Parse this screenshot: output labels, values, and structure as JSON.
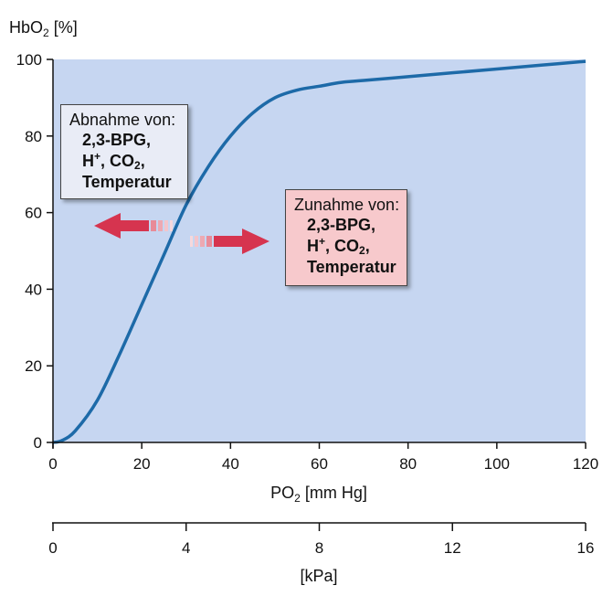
{
  "chart_data": {
    "type": "line",
    "y_axis_label_prefix": "HbO",
    "y_axis_label_sub": "2",
    "y_axis_label_suffix": " [%]",
    "x_axis_label_prefix": "PO",
    "x_axis_label_sub": "2",
    "x_axis_label_suffix": " [mm Hg]",
    "x_secondary_label": "[kPa]",
    "xlim": [
      0,
      120
    ],
    "ylim": [
      0,
      100
    ],
    "x_ticks": [
      "0",
      "20",
      "40",
      "60",
      "80",
      "100",
      "120"
    ],
    "y_ticks": [
      "0",
      "20",
      "40",
      "60",
      "80",
      "100"
    ],
    "x_secondary_ticks": [
      "0",
      "4",
      "8",
      "12",
      "16"
    ],
    "x_secondary_range": [
      0,
      16
    ],
    "grid": false,
    "series": [
      {
        "color": "#1d6aa8",
        "x": [
          0,
          2,
          5,
          10,
          15,
          20,
          25,
          30,
          35,
          40,
          45,
          50,
          55,
          60,
          65,
          70,
          80,
          90,
          100,
          110,
          120
        ],
        "y": [
          0,
          0.5,
          3,
          11,
          23,
          36,
          49,
          62,
          72,
          80,
          86,
          90,
          92,
          93,
          94,
          94.5,
          95.5,
          96.5,
          97.5,
          98.5,
          99.5
        ]
      }
    ],
    "annotations": {
      "left_box": {
        "heading": "Abnahme von:",
        "line1": "2,3-BPG,",
        "line2_h": "H",
        "line2_plus": "+",
        "line2_co": ", CO",
        "line2_sub": "2",
        "line2_end": ",",
        "line3": "Temperatur"
      },
      "right_box": {
        "heading": "Zunahme von:",
        "line1": "2,3-BPG,",
        "line2_h": "H",
        "line2_plus": "+",
        "line2_co": ", CO",
        "line2_sub": "2",
        "line2_end": ",",
        "line3": "Temperatur"
      },
      "arrow_left": "left-shift-arrow",
      "arrow_right": "right-shift-arrow"
    },
    "colors": {
      "plot_background": "#c6d6f1",
      "curve": "#1d6aa8",
      "arrow": "#d6344f",
      "left_box": "#e9ecf6",
      "right_box": "#f7c9cc"
    }
  }
}
